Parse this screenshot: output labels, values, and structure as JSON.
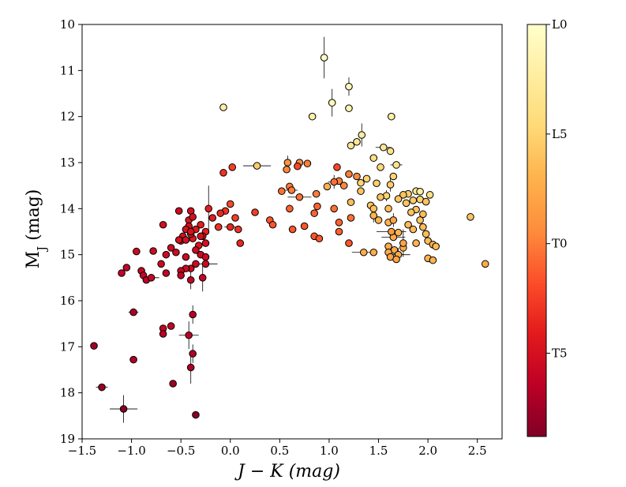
{
  "chart_data": {
    "type": "scatter",
    "title": "",
    "xlabel": "J − K (mag)",
    "ylabel": "M_J (mag)",
    "xlim": [
      -1.5,
      2.75
    ],
    "ylim": [
      19,
      10
    ],
    "y_inverted": true,
    "grid": false,
    "x_ticks": [
      -1.5,
      -1.0,
      -0.5,
      0.0,
      0.5,
      1.0,
      1.5,
      2.0,
      2.5
    ],
    "x_tick_labels": [
      "−1.5",
      "−1.0",
      "−0.5",
      "0.0",
      "0.5",
      "1.0",
      "1.5",
      "2.0",
      "2.5"
    ],
    "y_ticks": [
      10,
      11,
      12,
      13,
      14,
      15,
      16,
      17,
      18,
      19
    ],
    "y_tick_labels": [
      "10",
      "11",
      "12",
      "13",
      "14",
      "15",
      "16",
      "17",
      "18",
      "19"
    ],
    "colorbar": {
      "label_ticks": [
        {
          "label": "L0",
          "spt": 0
        },
        {
          "label": "L5",
          "spt": 5
        },
        {
          "label": "T0",
          "spt": 10
        },
        {
          "label": "T5",
          "spt": 15
        }
      ],
      "range": [
        0,
        18.8
      ],
      "colormap": "YlOrRd",
      "colors": [
        "#ffffcc",
        "#ffeda0",
        "#fed976",
        "#feb24c",
        "#fd8d3c",
        "#fc4e2a",
        "#e31a1c",
        "#bd0026",
        "#800026"
      ]
    },
    "points": [
      {
        "x": 0.95,
        "y": 10.72,
        "spt": 0.5,
        "yerr": 0.45
      },
      {
        "x": 1.2,
        "y": 11.35,
        "spt": 1,
        "yerr": 0.2
      },
      {
        "x": 1.03,
        "y": 11.7,
        "spt": 1,
        "yerr": 0.3
      },
      {
        "x": -0.07,
        "y": 11.8,
        "spt": 2
      },
      {
        "x": 1.2,
        "y": 11.82,
        "spt": 1.5
      },
      {
        "x": 0.83,
        "y": 12.0,
        "spt": 2
      },
      {
        "x": 1.63,
        "y": 12.0,
        "spt": 2
      },
      {
        "x": 1.33,
        "y": 12.4,
        "spt": 2.5,
        "yerr": 0.25
      },
      {
        "x": 1.28,
        "y": 12.55,
        "spt": 3
      },
      {
        "x": 1.22,
        "y": 12.63,
        "spt": 3
      },
      {
        "x": 1.55,
        "y": 12.67,
        "spt": 3,
        "xerr": 0.08
      },
      {
        "x": 1.62,
        "y": 12.75,
        "spt": 3.5
      },
      {
        "x": 1.45,
        "y": 12.9,
        "spt": 4
      },
      {
        "x": 1.68,
        "y": 13.05,
        "spt": 3.5,
        "xerr": 0.06
      },
      {
        "x": 0.27,
        "y": 13.07,
        "spt": 5.5,
        "xerr": 0.14
      },
      {
        "x": 1.52,
        "y": 13.1,
        "spt": 4.5
      },
      {
        "x": 1.65,
        "y": 13.3,
        "spt": 5
      },
      {
        "x": 1.38,
        "y": 13.35,
        "spt": 5
      },
      {
        "x": 1.32,
        "y": 13.44,
        "spt": 5
      },
      {
        "x": 1.48,
        "y": 13.45,
        "spt": 5.5
      },
      {
        "x": 1.62,
        "y": 13.48,
        "spt": 5.5,
        "yerr": 0.15
      },
      {
        "x": 0.98,
        "y": 13.52,
        "spt": 7
      },
      {
        "x": 1.88,
        "y": 13.62,
        "spt": 3
      },
      {
        "x": 1.92,
        "y": 13.63,
        "spt": 2.5
      },
      {
        "x": 1.32,
        "y": 13.62,
        "spt": 6
      },
      {
        "x": 1.8,
        "y": 13.68,
        "spt": 5.5
      },
      {
        "x": 1.75,
        "y": 13.7,
        "spt": 6
      },
      {
        "x": 2.02,
        "y": 13.7,
        "spt": 4
      },
      {
        "x": 1.58,
        "y": 13.72,
        "spt": 5,
        "yerr": 0.12
      },
      {
        "x": 1.52,
        "y": 13.75,
        "spt": 6
      },
      {
        "x": 1.7,
        "y": 13.79,
        "spt": 6
      },
      {
        "x": 1.92,
        "y": 13.8,
        "spt": 5
      },
      {
        "x": 1.85,
        "y": 13.82,
        "spt": 5.5
      },
      {
        "x": 1.98,
        "y": 13.85,
        "spt": 6
      },
      {
        "x": 1.78,
        "y": 13.88,
        "spt": 6
      },
      {
        "x": 1.22,
        "y": 13.86,
        "spt": 6.5
      },
      {
        "x": 1.42,
        "y": 13.93,
        "spt": 6
      },
      {
        "x": 1.45,
        "y": 14.0,
        "spt": 6
      },
      {
        "x": 1.6,
        "y": 14.0,
        "spt": 6.5
      },
      {
        "x": 1.88,
        "y": 14.02,
        "spt": 6
      },
      {
        "x": 1.83,
        "y": 14.08,
        "spt": 6
      },
      {
        "x": 1.95,
        "y": 14.12,
        "spt": 6.5
      },
      {
        "x": 1.45,
        "y": 14.15,
        "spt": 7,
        "yerr": 0.15
      },
      {
        "x": 2.43,
        "y": 14.18,
        "spt": 6
      },
      {
        "x": 1.5,
        "y": 14.25,
        "spt": 7
      },
      {
        "x": 1.92,
        "y": 14.25,
        "spt": 6
      },
      {
        "x": 1.6,
        "y": 14.3,
        "spt": 7
      },
      {
        "x": 1.8,
        "y": 14.35,
        "spt": 6.5
      },
      {
        "x": 1.95,
        "y": 14.4,
        "spt": 6.5
      },
      {
        "x": 1.85,
        "y": 14.45,
        "spt": 6.5
      },
      {
        "x": 1.7,
        "y": 14.52,
        "spt": 7
      },
      {
        "x": 1.98,
        "y": 14.55,
        "spt": 6.5
      },
      {
        "x": 1.65,
        "y": 14.62,
        "spt": 7.5,
        "xerr": 0.12
      },
      {
        "x": 2.0,
        "y": 14.7,
        "spt": 6.5
      },
      {
        "x": 1.88,
        "y": 14.75,
        "spt": 7
      },
      {
        "x": 2.05,
        "y": 14.78,
        "spt": 7
      },
      {
        "x": 2.08,
        "y": 14.82,
        "spt": 6.5
      },
      {
        "x": 1.6,
        "y": 14.82,
        "spt": 7.5
      },
      {
        "x": 1.75,
        "y": 14.85,
        "spt": 7.5
      },
      {
        "x": 1.66,
        "y": 14.9,
        "spt": 7.5
      },
      {
        "x": 1.45,
        "y": 14.95,
        "spt": 7.5
      },
      {
        "x": 1.6,
        "y": 14.95,
        "spt": 7.5
      },
      {
        "x": 1.7,
        "y": 15.0,
        "spt": 7.5,
        "xerr": 0.12,
        "yerr": 0.15
      },
      {
        "x": 1.62,
        "y": 15.05,
        "spt": 8
      },
      {
        "x": 2.0,
        "y": 15.08,
        "spt": 7
      },
      {
        "x": 1.68,
        "y": 15.1,
        "spt": 8
      },
      {
        "x": 2.05,
        "y": 15.12,
        "spt": 7
      },
      {
        "x": 2.58,
        "y": 15.2,
        "spt": 7.5
      },
      {
        "x": 1.75,
        "y": 14.75,
        "spt": 8,
        "yerr": 0.3
      },
      {
        "x": 1.35,
        "y": 14.95,
        "spt": 7.5,
        "xerr": 0.12
      },
      {
        "x": 1.63,
        "y": 14.5,
        "spt": 8.5,
        "xerr": 0.15
      },
      {
        "x": 1.65,
        "y": 14.25,
        "spt": 8,
        "yerr": 0.15
      },
      {
        "x": 0.58,
        "y": 13.0,
        "spt": 9,
        "yerr": 0.15
      },
      {
        "x": 0.7,
        "y": 13.0,
        "spt": 9.5
      },
      {
        "x": 0.78,
        "y": 13.02,
        "spt": 10
      },
      {
        "x": 0.57,
        "y": 13.15,
        "spt": 9.5
      },
      {
        "x": 1.2,
        "y": 13.25,
        "spt": 10
      },
      {
        "x": 1.28,
        "y": 13.3,
        "spt": 9.5
      },
      {
        "x": 1.1,
        "y": 13.4,
        "spt": 10
      },
      {
        "x": 1.05,
        "y": 13.42,
        "spt": 10.5,
        "xerr": 0.06,
        "yerr": 0.15
      },
      {
        "x": 1.15,
        "y": 13.5,
        "spt": 9.5
      },
      {
        "x": 0.6,
        "y": 13.52,
        "spt": 10
      },
      {
        "x": 0.62,
        "y": 13.6,
        "spt": 10,
        "xerr": 0.06
      },
      {
        "x": 0.52,
        "y": 13.62,
        "spt": 10.5
      },
      {
        "x": 0.87,
        "y": 13.68,
        "spt": 10
      },
      {
        "x": 0.7,
        "y": 13.75,
        "spt": 10.5,
        "xerr": 0.12
      },
      {
        "x": 0.88,
        "y": 13.95,
        "spt": 11
      },
      {
        "x": 0.6,
        "y": 14.0,
        "spt": 11
      },
      {
        "x": 1.05,
        "y": 14.0,
        "spt": 10.5
      },
      {
        "x": 0.85,
        "y": 14.1,
        "spt": 11
      },
      {
        "x": 1.22,
        "y": 14.2,
        "spt": 10.5
      },
      {
        "x": 0.4,
        "y": 14.25,
        "spt": 11.5
      },
      {
        "x": 1.1,
        "y": 14.3,
        "spt": 11
      },
      {
        "x": 0.43,
        "y": 14.35,
        "spt": 11.5
      },
      {
        "x": 0.75,
        "y": 14.38,
        "spt": 11.5
      },
      {
        "x": 0.63,
        "y": 14.45,
        "spt": 11.5
      },
      {
        "x": 1.1,
        "y": 14.5,
        "spt": 11
      },
      {
        "x": 0.85,
        "y": 14.6,
        "spt": 11.5
      },
      {
        "x": 0.9,
        "y": 14.65,
        "spt": 11.5
      },
      {
        "x": 1.2,
        "y": 14.75,
        "spt": 11.5
      },
      {
        "x": 1.08,
        "y": 13.1,
        "spt": 12
      },
      {
        "x": 0.68,
        "y": 13.08,
        "spt": 12
      },
      {
        "x": 0.25,
        "y": 14.08,
        "spt": 12.5
      },
      {
        "x": 0.05,
        "y": 14.2,
        "spt": 12.5
      },
      {
        "x": 0.0,
        "y": 13.9,
        "spt": 12
      },
      {
        "x": 0.02,
        "y": 13.1,
        "spt": 12.5
      },
      {
        "x": -0.07,
        "y": 13.22,
        "spt": 13
      },
      {
        "x": -0.05,
        "y": 14.05,
        "spt": 13
      },
      {
        "x": 0.0,
        "y": 14.4,
        "spt": 13.5,
        "xerr": 0.06
      },
      {
        "x": 0.08,
        "y": 14.45,
        "spt": 13
      },
      {
        "x": -0.1,
        "y": 14.1,
        "spt": 13.5
      },
      {
        "x": 0.1,
        "y": 14.75,
        "spt": 13.5
      },
      {
        "x": -0.12,
        "y": 14.4,
        "spt": 13
      },
      {
        "x": -0.18,
        "y": 14.2,
        "spt": 14
      },
      {
        "x": -0.22,
        "y": 14.0,
        "spt": 14,
        "yerr": 0.5
      },
      {
        "x": -0.25,
        "y": 14.5,
        "spt": 14
      },
      {
        "x": -0.28,
        "y": 14.6,
        "spt": 14
      },
      {
        "x": -0.3,
        "y": 14.35,
        "spt": 14
      },
      {
        "x": -0.32,
        "y": 14.8,
        "spt": 14.5
      },
      {
        "x": -0.35,
        "y": 14.45,
        "spt": 14.5
      },
      {
        "x": -0.38,
        "y": 14.65,
        "spt": 14.5
      },
      {
        "x": -0.4,
        "y": 14.55,
        "spt": 14.5
      },
      {
        "x": -0.42,
        "y": 14.25,
        "spt": 14.5
      },
      {
        "x": -0.42,
        "y": 14.38,
        "spt": 15
      },
      {
        "x": -0.45,
        "y": 14.45,
        "spt": 15
      },
      {
        "x": -0.48,
        "y": 14.6,
        "spt": 15
      },
      {
        "x": -0.5,
        "y": 14.7,
        "spt": 15
      },
      {
        "x": -0.52,
        "y": 14.05,
        "spt": 15.5
      },
      {
        "x": -0.4,
        "y": 14.05,
        "spt": 15
      },
      {
        "x": -0.38,
        "y": 14.18,
        "spt": 15
      },
      {
        "x": -0.4,
        "y": 14.5,
        "spt": 15
      },
      {
        "x": -0.45,
        "y": 14.68,
        "spt": 15
      },
      {
        "x": -0.3,
        "y": 14.6,
        "spt": 15
      },
      {
        "x": -0.25,
        "y": 14.75,
        "spt": 15
      },
      {
        "x": -0.35,
        "y": 14.9,
        "spt": 15.5
      },
      {
        "x": -0.3,
        "y": 15.0,
        "spt": 15.5
      },
      {
        "x": -0.25,
        "y": 15.05,
        "spt": 15.5
      },
      {
        "x": -0.35,
        "y": 15.2,
        "spt": 15.5
      },
      {
        "x": -0.4,
        "y": 15.3,
        "spt": 15.5
      },
      {
        "x": -0.45,
        "y": 15.3,
        "spt": 15.5
      },
      {
        "x": -0.5,
        "y": 15.35,
        "spt": 16
      },
      {
        "x": -0.5,
        "y": 15.45,
        "spt": 16
      },
      {
        "x": -0.45,
        "y": 15.05,
        "spt": 15.5
      },
      {
        "x": -0.55,
        "y": 14.95,
        "spt": 15.5
      },
      {
        "x": -0.6,
        "y": 14.85,
        "spt": 15.5
      },
      {
        "x": -0.65,
        "y": 15.0,
        "spt": 15.5
      },
      {
        "x": -0.68,
        "y": 14.35,
        "spt": 15
      },
      {
        "x": -0.52,
        "y": 14.68,
        "spt": 15
      },
      {
        "x": -0.4,
        "y": 15.55,
        "spt": 16,
        "yerr": 0.2
      },
      {
        "x": -0.25,
        "y": 15.2,
        "spt": 15.5,
        "xerr": 0.12
      },
      {
        "x": -0.28,
        "y": 15.5,
        "spt": 16,
        "yerr": 0.3
      },
      {
        "x": -0.7,
        "y": 15.2,
        "spt": 15.5
      },
      {
        "x": -0.78,
        "y": 14.92,
        "spt": 15.5
      },
      {
        "x": -0.9,
        "y": 15.35,
        "spt": 16
      },
      {
        "x": -0.88,
        "y": 15.45,
        "spt": 16
      },
      {
        "x": -0.85,
        "y": 15.55,
        "spt": 16.5
      },
      {
        "x": -0.8,
        "y": 15.5,
        "spt": 16,
        "xerr": 0.08
      },
      {
        "x": -0.65,
        "y": 15.4,
        "spt": 16
      },
      {
        "x": -0.95,
        "y": 14.93,
        "spt": 15.5
      },
      {
        "x": -1.05,
        "y": 15.28,
        "spt": 16
      },
      {
        "x": -1.1,
        "y": 15.4,
        "spt": 16
      },
      {
        "x": -0.98,
        "y": 16.25,
        "spt": 17,
        "xerr": 0.05
      },
      {
        "x": -0.68,
        "y": 16.6,
        "spt": 16
      },
      {
        "x": -0.6,
        "y": 16.55,
        "spt": 16
      },
      {
        "x": -0.68,
        "y": 16.72,
        "spt": 16.5
      },
      {
        "x": -0.38,
        "y": 16.3,
        "spt": 16.5,
        "yerr": 0.2
      },
      {
        "x": -0.42,
        "y": 16.75,
        "spt": 16.5,
        "xerr": 0.1,
        "yerr": 0.3
      },
      {
        "x": -0.38,
        "y": 17.15,
        "spt": 17,
        "yerr": 0.2
      },
      {
        "x": -0.4,
        "y": 17.45,
        "spt": 17,
        "yerr": 0.35
      },
      {
        "x": -0.98,
        "y": 17.28,
        "spt": 17
      },
      {
        "x": -1.38,
        "y": 16.98,
        "spt": 17.5
      },
      {
        "x": -0.58,
        "y": 17.8,
        "spt": 17.5
      },
      {
        "x": -1.3,
        "y": 17.88,
        "spt": 18,
        "xerr": 0.06
      },
      {
        "x": -1.08,
        "y": 18.35,
        "spt": 18.5,
        "xerr": 0.14,
        "yerr": 0.3
      },
      {
        "x": -0.35,
        "y": 18.48,
        "spt": 18.5
      }
    ]
  }
}
